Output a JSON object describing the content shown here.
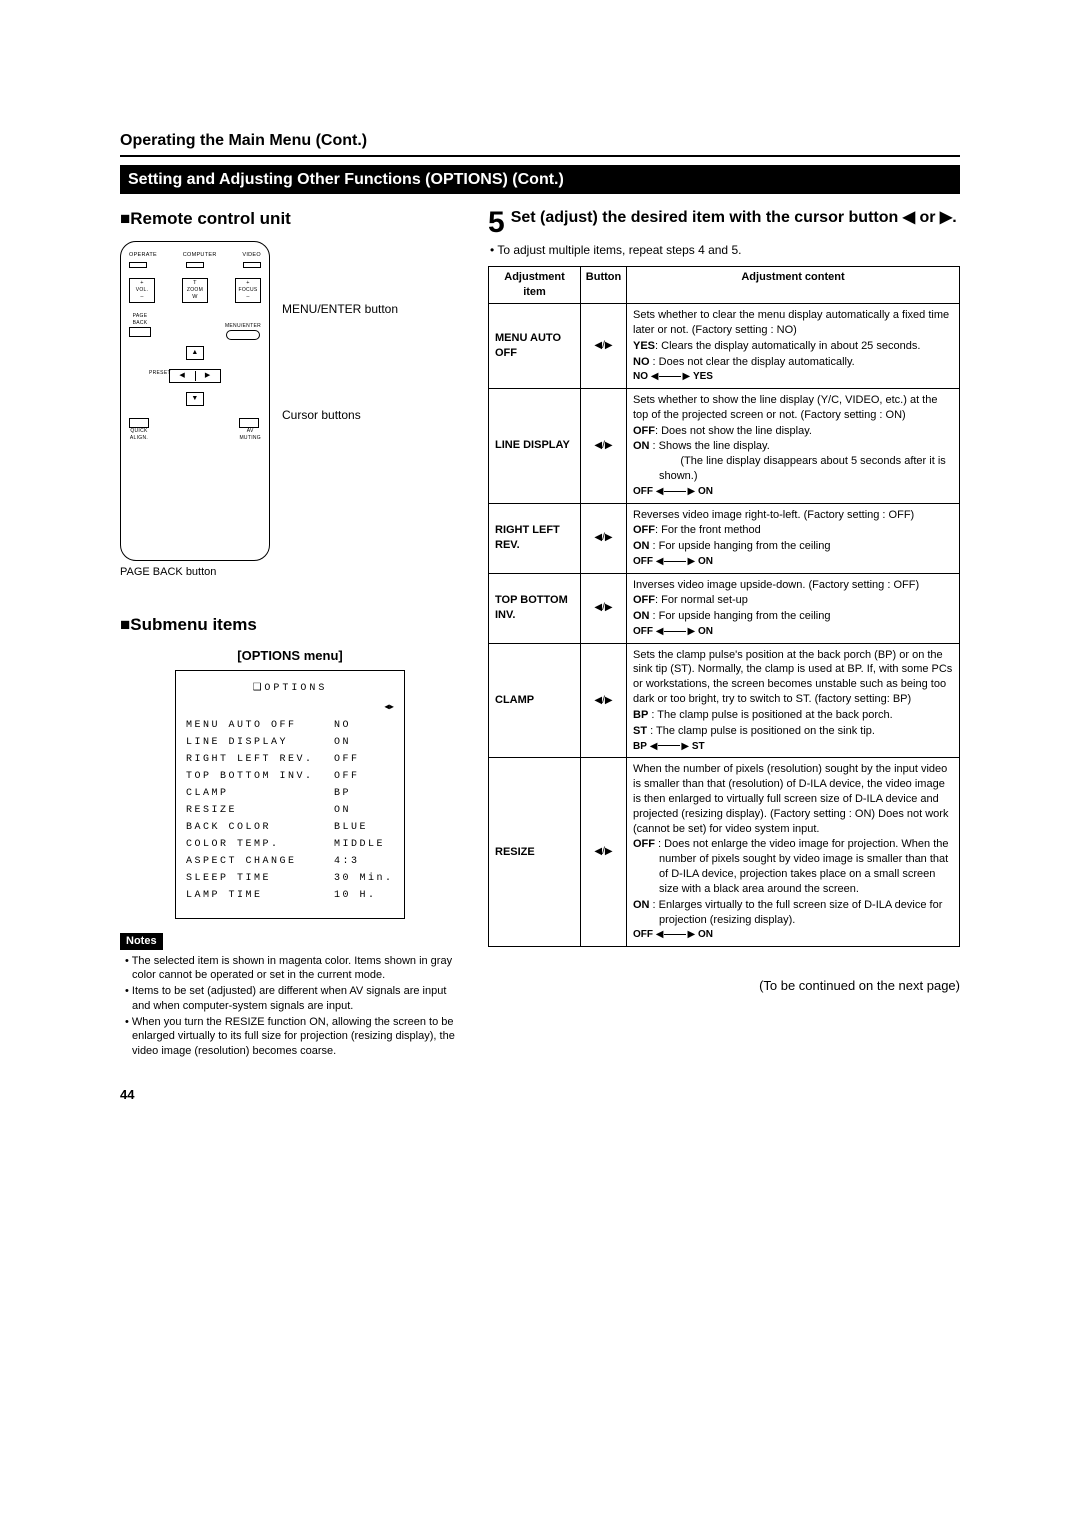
{
  "header": {
    "section": "Operating the Main Menu (Cont.)",
    "band": "Setting and Adjusting Other Functions (OPTIONS) (Cont.)"
  },
  "left": {
    "remote_title": "■Remote control unit",
    "menu_enter_label": "MENU/ENTER button",
    "cursor_label": "Cursor buttons",
    "pageback_label": "PAGE BACK button",
    "submenu_title": "■Submenu items",
    "options_caption": "[OPTIONS menu]",
    "options_card_title": "OPTIONS",
    "options_rows": [
      {
        "lbl": "MENU AUTO OFF",
        "val": "NO"
      },
      {
        "lbl": "LINE DISPLAY",
        "val": "ON"
      },
      {
        "lbl": "RIGHT LEFT REV.",
        "val": "OFF"
      },
      {
        "lbl": "TOP BOTTOM INV.",
        "val": "OFF"
      },
      {
        "lbl": "CLAMP",
        "val": "BP"
      },
      {
        "lbl": "RESIZE",
        "val": "ON"
      },
      {
        "lbl": "BACK COLOR",
        "val": "BLUE"
      },
      {
        "lbl": "COLOR TEMP.",
        "val": "MIDDLE"
      },
      {
        "lbl": "ASPECT CHANGE",
        "val": "4:3"
      },
      {
        "lbl": "SLEEP TIME",
        "val": "30  Min."
      },
      {
        "lbl": "LAMP TIME",
        "val": "10  H."
      }
    ],
    "notes_label": "Notes",
    "notes": [
      "• The selected item is shown in magenta color. Items shown in gray color cannot be operated or set in the current mode.",
      "• Items to be set (adjusted) are different when AV signals are input and when computer-system signals are input.",
      "• When you turn the RESIZE function ON, allowing the screen to be enlarged virtually to its full size for projection (resizing display), the video image (resolution) becomes coarse."
    ]
  },
  "right": {
    "step_num": "5",
    "step_text": "Set (adjust) the desired item with the cursor button ◀ or ▶.",
    "bullet": "• To adjust multiple items, repeat steps 4 and 5.",
    "th_item": "Adjustment item",
    "th_button": "Button",
    "th_content": "Adjustment content",
    "btn_glyph": "◀/▶",
    "rows": [
      {
        "item": "MENU AUTO OFF",
        "content": [
          {
            "t": "p",
            "v": "Sets whether to clear the menu display automatically a fixed time later or not. (Factory setting : NO)"
          },
          {
            "t": "idt",
            "b": "YES",
            "v": ": Clears the display automatically in about 25 seconds."
          },
          {
            "t": "idt",
            "b": "NO",
            "v": " : Does not clear the display automatically."
          }
        ],
        "range": {
          "a": "NO",
          "b": "YES"
        }
      },
      {
        "item": "LINE DISPLAY",
        "content": [
          {
            "t": "p",
            "v": "Sets whether to show the line display (Y/C, VIDEO, etc.) at the top of the projected screen or not. (Factory setting : ON)"
          },
          {
            "t": "idt",
            "b": "OFF",
            "v": ": Does not show the line display."
          },
          {
            "t": "idt",
            "b": "ON",
            "v": " : Shows the line display.\n(The line display disappears about 5 seconds after it is shown.)"
          }
        ],
        "range": {
          "a": "OFF",
          "b": "ON"
        }
      },
      {
        "item": "RIGHT LEFT REV.",
        "content": [
          {
            "t": "p",
            "v": "Reverses video image right-to-left. (Factory setting : OFF)"
          },
          {
            "t": "idt",
            "b": "OFF",
            "v": ": For the front method"
          },
          {
            "t": "idt",
            "b": "ON",
            "v": " : For upside hanging from the ceiling"
          }
        ],
        "range": {
          "a": "OFF",
          "b": "ON"
        }
      },
      {
        "item": "TOP BOTTOM INV.",
        "content": [
          {
            "t": "p",
            "v": "Inverses video image upside-down. (Factory setting : OFF)"
          },
          {
            "t": "idt",
            "b": "OFF",
            "v": ": For normal set-up"
          },
          {
            "t": "idt",
            "b": "ON",
            "v": " : For upside hanging from the ceiling"
          }
        ],
        "range": {
          "a": "OFF",
          "b": "ON"
        }
      },
      {
        "item": "CLAMP",
        "content": [
          {
            "t": "p",
            "v": "Sets the clamp pulse's position at the back porch (BP) or on the sink tip (ST). Normally, the clamp is used at BP. If, with some PCs or workstations, the screen becomes unstable such as being too dark or too bright, try to switch to ST. (factory setting: BP)"
          },
          {
            "t": "idt",
            "b": "BP",
            "v": " : The clamp pulse is positioned at the back porch."
          },
          {
            "t": "idt",
            "b": "ST",
            "v": " : The clamp pulse is positioned on the sink tip."
          }
        ],
        "range": {
          "a": "BP",
          "b": "ST"
        }
      },
      {
        "item": "RESIZE",
        "content": [
          {
            "t": "p",
            "v": "When the number of pixels (resolution) sought by the input video is smaller than that (resolution) of D-ILA device, the video image is then enlarged to virtually full screen size of D-ILA device and projected (resizing display). (Factory setting : ON) Does not work (cannot be set) for video system input."
          },
          {
            "t": "idt",
            "b": "OFF",
            "v": " : Does not enlarge the video image for projection. When the number of pixels sought by video image is smaller than that of D-ILA device, projection takes place on a small screen size with a black area around the screen."
          },
          {
            "t": "idt",
            "b": "ON",
            "v": " : Enlarges virtually to the full screen size of D-ILA device for projection (resizing display)."
          }
        ],
        "range": {
          "a": "OFF",
          "b": "ON"
        }
      }
    ],
    "continued": "(To be continued on the next page)"
  },
  "page_number": "44",
  "remote_labels": {
    "operate": "OPERATE",
    "computer": "COMPUTER",
    "video": "VIDEO",
    "vol": "VOL.",
    "zoom": "ZOOM",
    "focus": "FOCUS",
    "t": "T",
    "w": "W",
    "plus": "+",
    "minus": "–",
    "pageback": "PAGE\nBACK",
    "menuenter": "MENU/ENTER",
    "preset": "PRESET",
    "quick": "QUICK\nALIGN.",
    "av": "AV\nMUTING"
  }
}
